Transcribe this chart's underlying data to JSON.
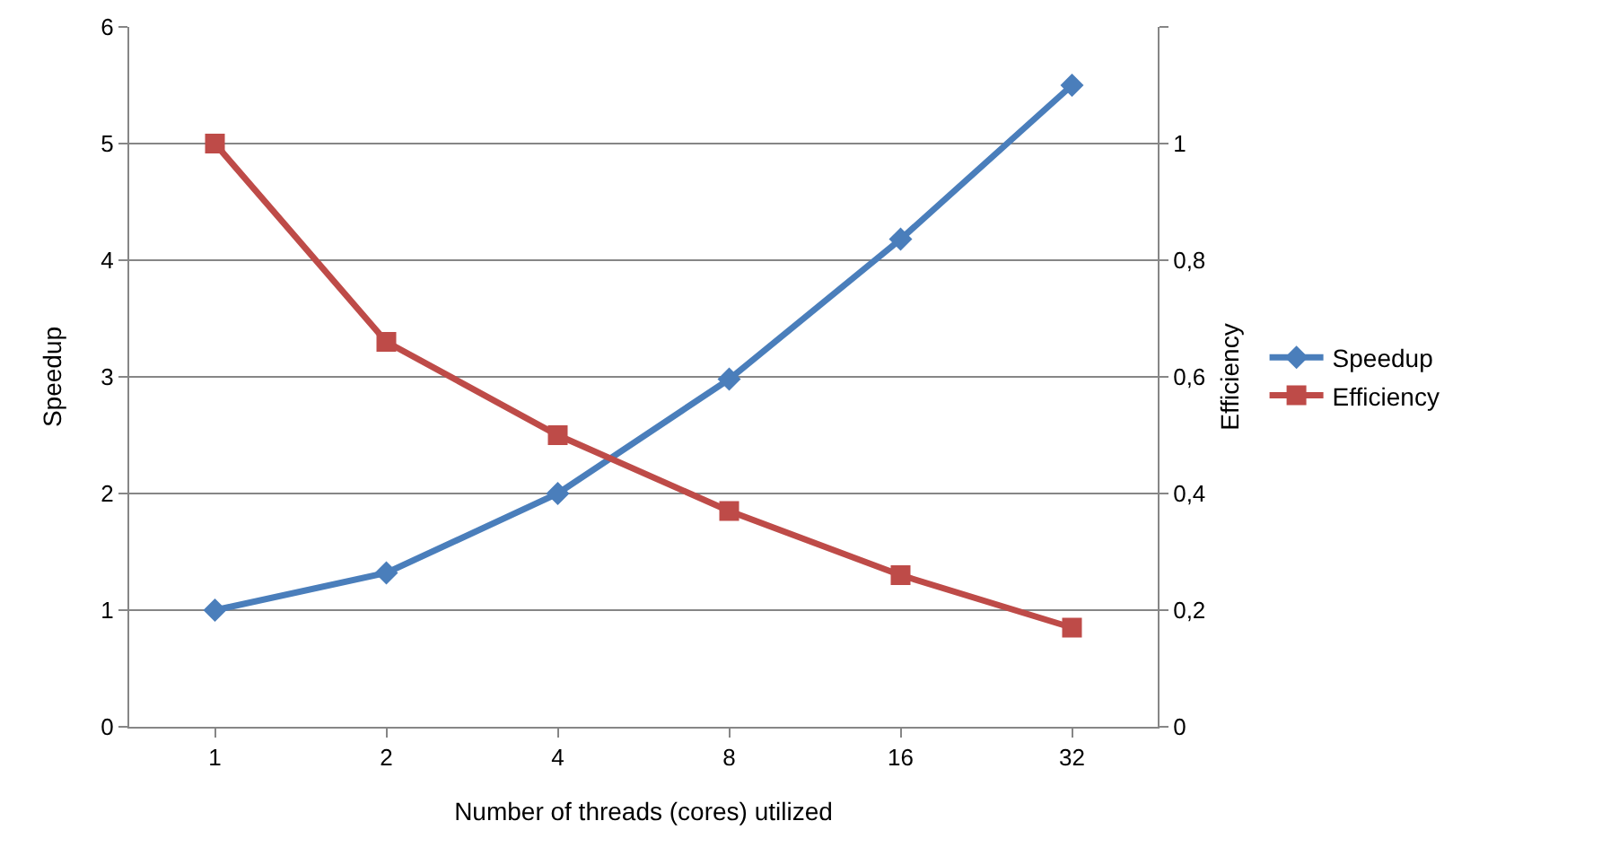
{
  "chart_data": {
    "type": "line",
    "xlabel": "Number of threads (cores) utilized",
    "ylabel": "Speedup",
    "y2label": "Efficiency",
    "categories": [
      "1",
      "2",
      "4",
      "8",
      "16",
      "32"
    ],
    "series": [
      {
        "name": "Speedup",
        "color": "#4a7ebb",
        "marker": "diamond",
        "values": [
          1,
          1.32,
          2,
          2.98,
          4.18,
          5.5
        ]
      },
      {
        "name": "Efficiency",
        "color": "#be4b48",
        "marker": "square",
        "axis": "y2",
        "values": [
          1,
          0.66,
          0.5,
          0.37,
          0.26,
          0.17
        ]
      }
    ],
    "ylim": [
      0,
      6
    ],
    "yticks": [
      0,
      1,
      2,
      3,
      4,
      5,
      6
    ],
    "y2lim": [
      0,
      1.2
    ],
    "y2ticks": [
      0,
      {
        "value": 0.2,
        "label": "0,2"
      },
      {
        "value": 0.4,
        "label": "0,4"
      },
      {
        "value": 0.6,
        "label": "0,6"
      },
      {
        "value": 0.8,
        "label": "0,8"
      },
      1,
      {
        "value": 1.2,
        "label": null
      }
    ],
    "grid": "y",
    "legend": "right",
    "line_style": "solid"
  }
}
